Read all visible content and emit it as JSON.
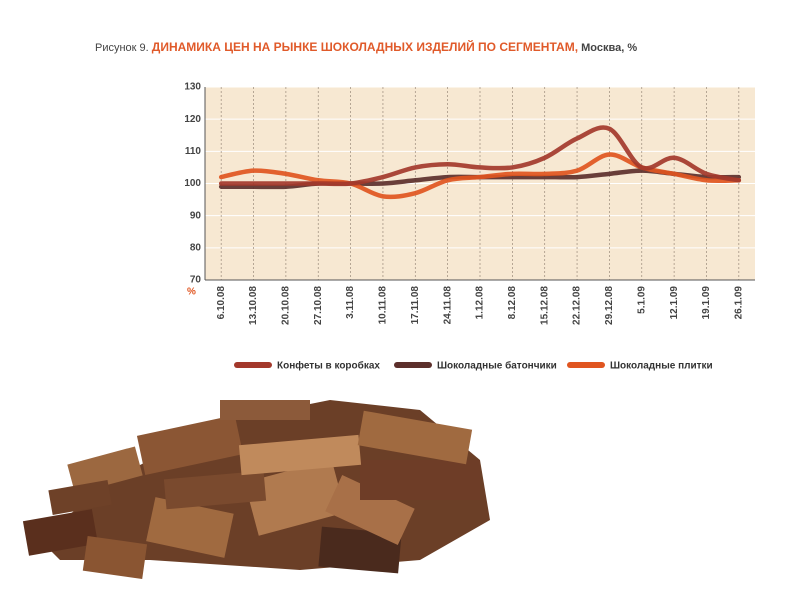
{
  "chart_data": {
    "type": "line",
    "figure_label": "Рисунок 9.",
    "title": "ДИНАМИКА ЦЕН НА РЫНКЕ ШОКОЛАДНЫХ ИЗДЕЛИЙ ПО СЕГМЕНТАМ,",
    "subtitle": "Москва, %",
    "y_label": "%",
    "categories": [
      "6.10.08",
      "13.10.08",
      "20.10.08",
      "27.10.08",
      "3.11.08",
      "10.11.08",
      "17.11.08",
      "24.11.08",
      "1.12.08",
      "8.12.08",
      "15.12.08",
      "22.12.08",
      "29.12.08",
      "5.1.09",
      "12.1.09",
      "19.1.09",
      "26.1.09"
    ],
    "series": [
      {
        "name": "Конфеты в коробках",
        "color": "#a3382b",
        "values": [
          100,
          100,
          100,
          100,
          100,
          102,
          105,
          106,
          105,
          105,
          108,
          114,
          117,
          105,
          108,
          103,
          101
        ]
      },
      {
        "name": "Шоколадные батончики",
        "color": "#5c2f2b",
        "values": [
          99,
          99,
          99,
          100,
          100,
          100,
          101,
          102,
          102,
          102,
          102,
          102,
          103,
          104,
          103,
          102,
          102
        ]
      },
      {
        "name": "Шоколадные плитки",
        "color": "#e05520",
        "values": [
          102,
          104,
          103,
          101,
          100,
          96,
          97,
          101,
          102,
          103,
          103,
          104,
          109,
          105,
          103,
          101,
          101
        ]
      }
    ],
    "ylim": [
      70,
      130
    ],
    "yticks": [
      70,
      80,
      90,
      100,
      110,
      120,
      130
    ],
    "grid": true
  }
}
